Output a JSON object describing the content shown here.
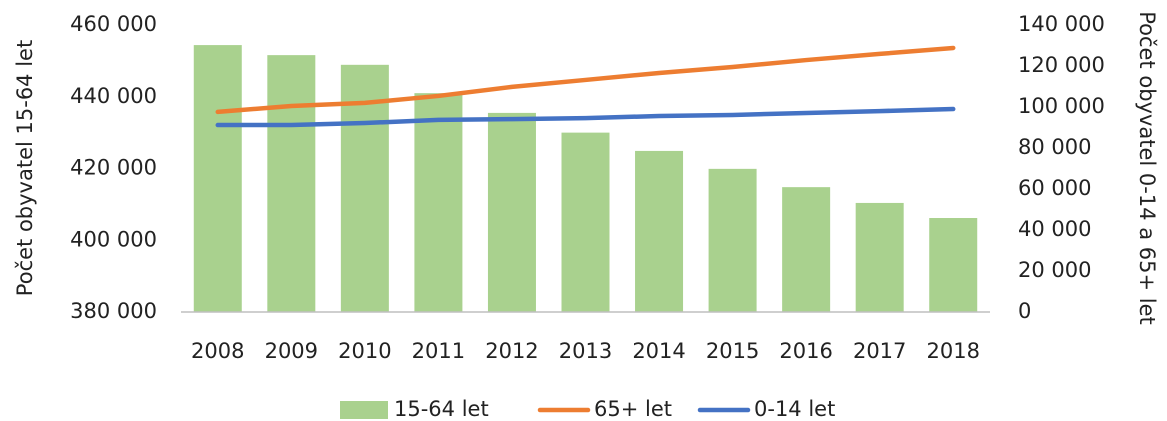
{
  "chart_data": {
    "type": "bar",
    "y_label": "Počet obyvatel 15-64 let",
    "y2_label": "Počet obyvatel 0-14 a 65+ let",
    "categories": [
      "2008",
      "2009",
      "2010",
      "2011",
      "2012",
      "2013",
      "2014",
      "2015",
      "2016",
      "2017",
      "2018"
    ],
    "series": [
      {
        "name": "15-64 let",
        "type": "bar",
        "color": "#a9d18e",
        "values": [
          454400,
          451600,
          448900,
          441000,
          435500,
          430000,
          424900,
          419900,
          414800,
          410400,
          406200
        ]
      },
      {
        "name": "65+ let",
        "type": "line",
        "axis": "y2",
        "color": "#ed7d31",
        "values": [
          97600,
          100500,
          102000,
          105400,
          109800,
          113200,
          116600,
          119500,
          122900,
          125900,
          128800
        ]
      },
      {
        "name": "0-14 let",
        "type": "line",
        "axis": "y2",
        "color": "#4472c4",
        "values": [
          91200,
          91200,
          92200,
          93700,
          94100,
          94600,
          95600,
          96100,
          97100,
          98000,
          99000
        ]
      }
    ],
    "ylim": [
      380000,
      460000
    ],
    "yticks": [
      {
        "value": 380000,
        "label": "380 000"
      },
      {
        "value": 400000,
        "label": "400 000"
      },
      {
        "value": 420000,
        "label": "420 000"
      },
      {
        "value": 440000,
        "label": "440 000"
      },
      {
        "value": 460000,
        "label": "460 000"
      }
    ],
    "y2lim": [
      0,
      140000
    ],
    "y2ticks": [
      0,
      {
        "value": 20000,
        "label": "20 000"
      },
      {
        "value": 40000,
        "label": "40 000"
      },
      {
        "value": 60000,
        "label": "60 000"
      },
      {
        "value": 80000,
        "label": "80 000"
      },
      {
        "value": 100000,
        "label": "100 000"
      },
      {
        "value": 120000,
        "label": "120 000"
      },
      {
        "value": 140000,
        "label": "140 000"
      }
    ],
    "legend": "bottom",
    "grid": false
  }
}
